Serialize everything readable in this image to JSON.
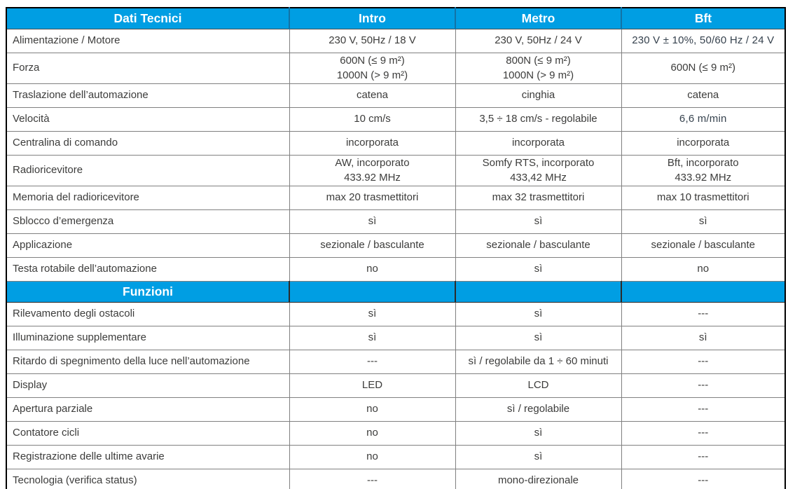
{
  "header": {
    "dati_tecnici": "Dati Tecnici",
    "intro": "Intro",
    "metro": "Metro",
    "bft": "Bft"
  },
  "sections": {
    "funzioni": "Funzioni"
  },
  "tech_rows": [
    {
      "label": "Alimentazione / Motore",
      "intro": "230 V, 50Hz / 18 V",
      "metro": "230 V, 50Hz / 24 V",
      "bft": "230 V ± 10%, 50/60 Hz / 24 V"
    },
    {
      "label": "Forza",
      "intro": "600N (≤ 9 m²)\n1000N (> 9 m²)",
      "metro": "800N (≤ 9 m²)\n1000N (> 9 m²)",
      "bft": "600N (≤ 9 m²)"
    },
    {
      "label": "Traslazione dell’automazione",
      "intro": "catena",
      "metro": "cinghia",
      "bft": "catena"
    },
    {
      "label": "Velocità",
      "intro": "10 cm/s",
      "metro": "3,5 ÷ 18 cm/s - regolabile",
      "bft": "6,6 m/min"
    },
    {
      "label": "Centralina di comando",
      "intro": "incorporata",
      "metro": "incorporata",
      "bft": "incorporata"
    },
    {
      "label": "Radioricevitore",
      "intro": "AW, incorporato\n433.92 MHz",
      "metro": "Somfy RTS, incorporato\n433,42 MHz",
      "bft": "Bft, incorporato\n433.92 MHz"
    },
    {
      "label": "Memoria del radioricevitore",
      "intro": "max 20 trasmettitori",
      "metro": "max 32 trasmettitori",
      "bft": "max 10 trasmettitori"
    },
    {
      "label": "Sblocco d’emergenza",
      "intro": "sì",
      "metro": "sì",
      "bft": "sì"
    },
    {
      "label": "Applicazione",
      "intro": "sezionale / basculante",
      "metro": "sezionale / basculante",
      "bft": "sezionale / basculante"
    },
    {
      "label": "Testa rotabile dell’automazione",
      "intro": "no",
      "metro": "sì",
      "bft": "no"
    }
  ],
  "func_rows": [
    {
      "label": "Rilevamento degli ostacoli",
      "intro": "sì",
      "metro": "sì",
      "bft": "---"
    },
    {
      "label": "Illuminazione supplementare",
      "intro": "sì",
      "metro": "sì",
      "bft": "sì"
    },
    {
      "label": "Ritardo di spegnimento della luce nell’automazione",
      "intro": "---",
      "metro": "sì / regolabile da 1 ÷ 60 minuti",
      "bft": "---"
    },
    {
      "label": "Display",
      "intro": "LED",
      "metro": "LCD",
      "bft": "---"
    },
    {
      "label": "Apertura parziale",
      "intro": "no",
      "metro": "sì / regolabile",
      "bft": "---"
    },
    {
      "label": "Contatore cicli",
      "intro": "no",
      "metro": "sì",
      "bft": "---"
    },
    {
      "label": "Registrazione delle ultime avarie",
      "intro": "no",
      "metro": "sì",
      "bft": "---"
    },
    {
      "label": "Tecnologia (verifica status)",
      "intro": "---",
      "metro": "mono-direzionale",
      "bft": "---"
    }
  ],
  "colors": {
    "accent_cyan": "#009EE3",
    "header_divider_blue": "#1273A6",
    "header_text": "#FFFFFF",
    "body_text": "#3C3C3B",
    "bft_alt_text": "#36424E",
    "grid_gray": "#808080",
    "outer_border": "#000000"
  }
}
